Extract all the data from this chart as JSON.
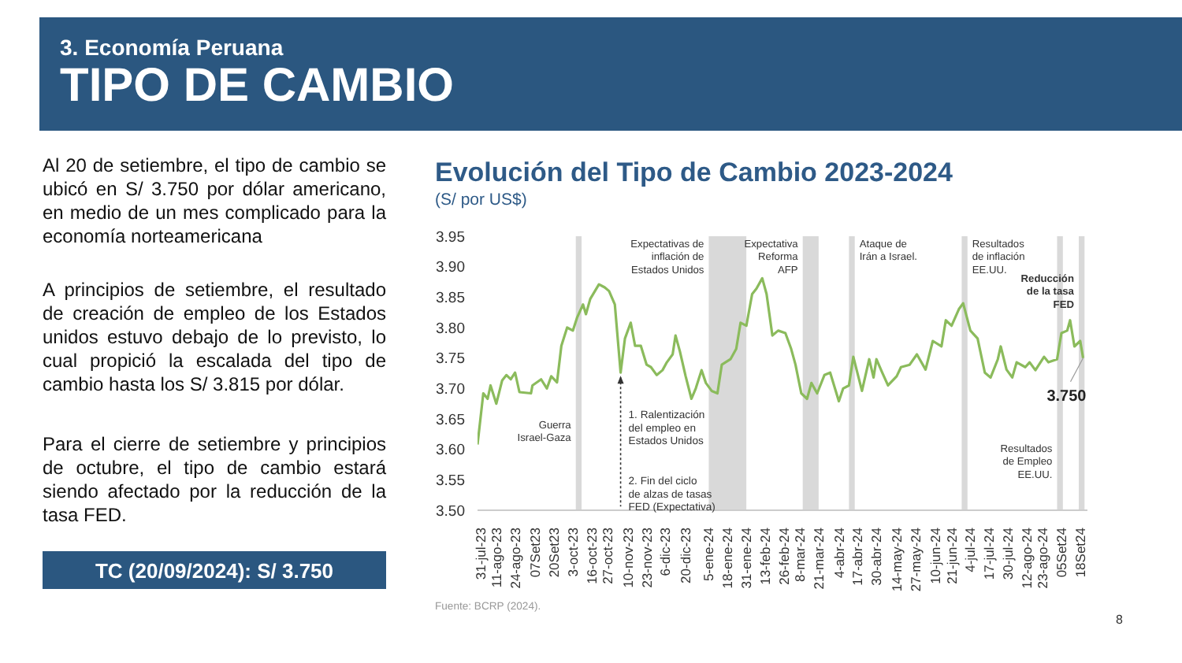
{
  "chart_data": {
    "type": "line",
    "title": "Evolución del Tipo de Cambio 2023-2024",
    "subtitle": "(S/ por US$)",
    "color": "#8bbb5c",
    "x": [
      "2023-07-29",
      "2023-08-02",
      "2023-08-05",
      "2023-08-07",
      "2023-08-11",
      "2023-08-15",
      "2023-08-18",
      "2023-08-21",
      "2023-08-24",
      "2023-08-27",
      "2023-09-04",
      "2023-09-05",
      "2023-09-11",
      "2023-09-15",
      "2023-09-18",
      "2023-09-22",
      "2023-09-25",
      "2023-09-29",
      "2023-10-03",
      "2023-10-06",
      "2023-10-10",
      "2023-10-12",
      "2023-10-15",
      "2023-10-21",
      "2023-10-25",
      "2023-10-28",
      "2023-11-01",
      "2023-11-05",
      "2023-11-08",
      "2023-11-12",
      "2023-11-15",
      "2023-11-19",
      "2023-11-23",
      "2023-11-26",
      "2023-11-30",
      "2023-12-04",
      "2023-12-07",
      "2023-12-11",
      "2023-12-13",
      "2023-12-16",
      "2023-12-20",
      "2023-12-24",
      "2023-12-27",
      "2023-12-31",
      "2024-01-03",
      "2024-01-07",
      "2024-01-11",
      "2024-01-14",
      "2024-01-20",
      "2024-01-24",
      "2024-01-27",
      "2024-01-31",
      "2024-02-04",
      "2024-02-07",
      "2024-02-11",
      "2024-02-14",
      "2024-02-18",
      "2024-02-22",
      "2024-02-27",
      "2024-03-02",
      "2024-03-05",
      "2024-03-09",
      "2024-03-13",
      "2024-03-16",
      "2024-03-20",
      "2024-03-25",
      "2024-03-29",
      "2024-04-04",
      "2024-04-07",
      "2024-04-11",
      "2024-04-14",
      "2024-04-20",
      "2024-04-25",
      "2024-04-28",
      "2024-04-30",
      "2024-05-04",
      "2024-05-08",
      "2024-05-14",
      "2024-05-17",
      "2024-05-23",
      "2024-05-28",
      "2024-06-03",
      "2024-06-08",
      "2024-06-14",
      "2024-06-17",
      "2024-06-21",
      "2024-06-26",
      "2024-06-29",
      "2024-07-04",
      "2024-07-09",
      "2024-07-14",
      "2024-07-18",
      "2024-07-23",
      "2024-07-25",
      "2024-07-29",
      "2024-08-02",
      "2024-08-05",
      "2024-08-11",
      "2024-08-14",
      "2024-08-18",
      "2024-08-24",
      "2024-08-27",
      "2024-09-02",
      "2024-09-05",
      "2024-09-09",
      "2024-09-11",
      "2024-09-14",
      "2024-09-18",
      "2024-09-20"
    ],
    "values": [
      3.608,
      3.692,
      3.683,
      3.705,
      3.675,
      3.713,
      3.722,
      3.715,
      3.726,
      3.694,
      3.692,
      3.705,
      3.715,
      3.7,
      3.72,
      3.71,
      3.77,
      3.8,
      3.795,
      3.817,
      3.838,
      3.822,
      3.847,
      3.871,
      3.866,
      3.86,
      3.838,
      3.726,
      3.782,
      3.808,
      3.77,
      3.77,
      3.739,
      3.735,
      3.722,
      3.73,
      3.743,
      3.756,
      3.787,
      3.761,
      3.72,
      3.683,
      3.7,
      3.73,
      3.709,
      3.696,
      3.692,
      3.739,
      3.748,
      3.765,
      3.808,
      3.803,
      3.855,
      3.864,
      3.881,
      3.855,
      3.787,
      3.795,
      3.791,
      3.765,
      3.739,
      3.692,
      3.683,
      3.709,
      3.692,
      3.722,
      3.726,
      3.679,
      3.7,
      3.705,
      3.752,
      3.696,
      3.748,
      3.718,
      3.748,
      3.726,
      3.705,
      3.72,
      3.735,
      3.739,
      3.756,
      3.731,
      3.778,
      3.769,
      3.812,
      3.803,
      3.83,
      3.84,
      3.795,
      3.782,
      3.726,
      3.718,
      3.748,
      3.769,
      3.731,
      3.718,
      3.743,
      3.735,
      3.743,
      3.73,
      3.752,
      3.743,
      3.748,
      3.791,
      3.795,
      3.812,
      3.769,
      3.778,
      3.75
    ],
    "xlim": [
      "2023-07-29",
      "2024-09-23"
    ],
    "xticks": [
      {
        "value": "2023-07-31",
        "label": "31-jul-23"
      },
      {
        "value": "2023-08-11",
        "label": "11-ago-23"
      },
      {
        "value": "2023-08-24",
        "label": "24-ago-23"
      },
      {
        "value": "2023-09-07",
        "label": "07Set23"
      },
      {
        "value": "2023-09-20",
        "label": "20Set23"
      },
      {
        "value": "2023-10-03",
        "label": "3-oct-23"
      },
      {
        "value": "2023-10-16",
        "label": "16-oct-23"
      },
      {
        "value": "2023-10-27",
        "label": "27-oct-23"
      },
      {
        "value": "2023-11-10",
        "label": "10-nov-23"
      },
      {
        "value": "2023-11-23",
        "label": "23-nov-23"
      },
      {
        "value": "2023-12-06",
        "label": "6-dic-23"
      },
      {
        "value": "2023-12-20",
        "label": "20-dic-23"
      },
      {
        "value": "2024-01-05",
        "label": "5-ene-24"
      },
      {
        "value": "2024-01-18",
        "label": "18-ene-24"
      },
      {
        "value": "2024-01-31",
        "label": "31-ene-24"
      },
      {
        "value": "2024-02-13",
        "label": "13-feb-24"
      },
      {
        "value": "2024-02-26",
        "label": "26-feb-24"
      },
      {
        "value": "2024-03-08",
        "label": "8-mar-24"
      },
      {
        "value": "2024-03-21",
        "label": "21-mar-24"
      },
      {
        "value": "2024-04-04",
        "label": "4-abr-24"
      },
      {
        "value": "2024-04-17",
        "label": "17-abr-24"
      },
      {
        "value": "2024-04-30",
        "label": "30-abr-24"
      },
      {
        "value": "2024-05-14",
        "label": "14-may-24"
      },
      {
        "value": "2024-05-27",
        "label": "27-may-24"
      },
      {
        "value": "2024-06-10",
        "label": "10-jun-24"
      },
      {
        "value": "2024-06-21",
        "label": "21-jun-24"
      },
      {
        "value": "2024-07-04",
        "label": "4-jul-24"
      },
      {
        "value": "2024-07-17",
        "label": "17-jul-24"
      },
      {
        "value": "2024-07-30",
        "label": "30-jul-24"
      },
      {
        "value": "2024-08-12",
        "label": "12-ago-24"
      },
      {
        "value": "2024-08-23",
        "label": "23-ago-24"
      },
      {
        "value": "2024-09-05",
        "label": "05Set24"
      },
      {
        "value": "2024-09-18",
        "label": "18Set24"
      }
    ],
    "ylim": [
      3.5,
      3.95
    ],
    "yticks": [
      {
        "value": 3.5,
        "label": "3.50"
      },
      {
        "value": 3.55,
        "label": "3.55"
      },
      {
        "value": 3.6,
        "label": "3.60"
      },
      {
        "value": 3.65,
        "label": "3.65"
      },
      {
        "value": 3.7,
        "label": "3.70"
      },
      {
        "value": 3.75,
        "label": "3.75"
      },
      {
        "value": 3.8,
        "label": "3.80"
      },
      {
        "value": 3.85,
        "label": "3.85"
      },
      {
        "value": 3.9,
        "label": "3.90"
      },
      {
        "value": 3.95,
        "label": "3.95"
      }
    ],
    "bands": [
      {
        "axis": "x",
        "from": "2023-10-05",
        "to": "2023-10-09",
        "label": "Guerra\nIsrael-Gaza",
        "color": "#d9d9d9"
      },
      {
        "axis": "x",
        "from": "2024-01-05",
        "to": "2024-01-31",
        "label": "Expectativas de\ninflación de\nEstados Unidos",
        "color": "#d9d9d9"
      },
      {
        "axis": "x",
        "from": "2024-03-10",
        "to": "2024-03-21",
        "label": "Expectativa\nReforma\nAFP",
        "color": "#d9d9d9"
      },
      {
        "axis": "x",
        "from": "2024-04-11",
        "to": "2024-04-15",
        "label": "Ataque de\nIrán a Israel.",
        "color": "#d9d9d9"
      },
      {
        "axis": "x",
        "from": "2024-06-28",
        "to": "2024-07-02",
        "label": "Resultados\nde inflación\nEE.UU.",
        "color": "#d9d9d9"
      },
      {
        "axis": "x",
        "from": "2024-09-02",
        "to": "2024-09-06",
        "label": "Resultados\nde Empleo\nEE.UU.",
        "color": "#d9d9d9"
      },
      {
        "axis": "x",
        "from": "2024-09-17",
        "to": "2024-09-21",
        "label": "Reducción\nde la tasa\nFED",
        "color": "#d9d9d9"
      }
    ],
    "annotations": [
      "3. Economía Peruana",
      "TIPO DE CAMBIO",
      "Al 20 de setiembre, el tipo de cambio se ubicó en S/ 3.750 por dólar americano, en medio de un mes complicado para la economía norteamericana",
      "A principios de setiembre, el resultado de creación  de empleo de los Estados unidos estuvo debajo de lo previsto, lo cual propició la escalada del tipo de cambio hasta  los S/ 3.815 por dólar.",
      "Para el cierre de setiembre y principios de octubre, el tipo de cambio estará siendo afectado por la reducción de la tasa FED.",
      "TC (20/09/2024): S/ 3.750",
      "Fuente: BCRP (2024).",
      "8",
      "1. Ralentización del empleo en Estados Unidos",
      {
        "text": "2. Fin del ciclo de alzas de tasas FED (Expectativa)",
        "x": "2023-11-05",
        "y": 3.726
      },
      {
        "text": "3.750",
        "x": "2024-09-20",
        "y": 3.75
      }
    ]
  }
}
